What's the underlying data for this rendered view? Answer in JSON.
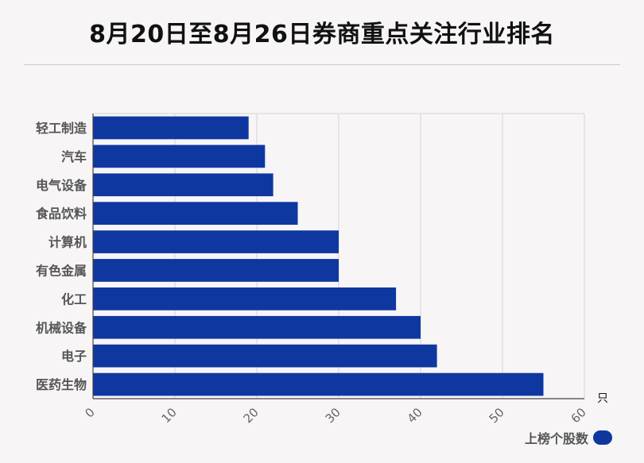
{
  "title": "8月20日至8月26日券商重点关注行业排名",
  "chart_data": {
    "type": "bar",
    "orientation": "horizontal",
    "title": "8月20日至8月26日券商重点关注行业排名",
    "categories": [
      "轻工制造",
      "汽车",
      "电气设备",
      "食品饮料",
      "计算机",
      "有色金属",
      "化工",
      "机械设备",
      "电子",
      "医药生物"
    ],
    "series": [
      {
        "name": "上榜个股数",
        "values": [
          19,
          21,
          22,
          25,
          30,
          30,
          37,
          40,
          42,
          55
        ]
      }
    ],
    "x_ticks": [
      0,
      10,
      20,
      30,
      40,
      50,
      60
    ],
    "xlim": [
      0,
      60
    ],
    "x_unit": "只",
    "grid": true,
    "legend_position": "bottom-right",
    "bar_color": "#0e38a0"
  }
}
